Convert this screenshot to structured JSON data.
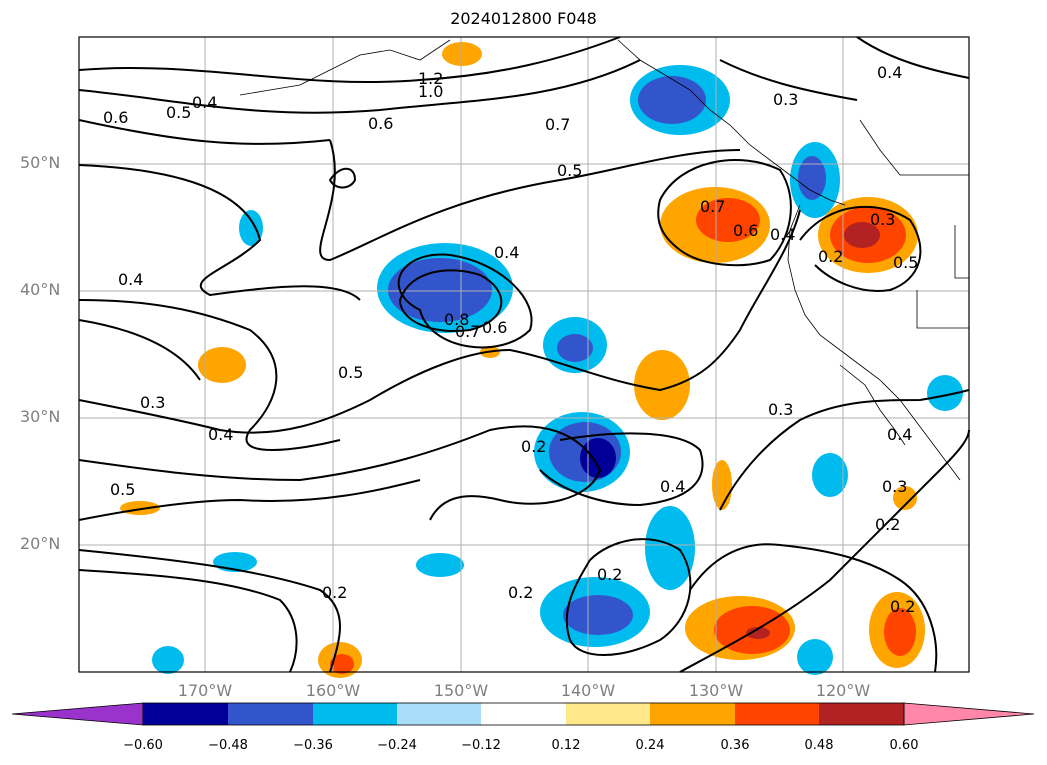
{
  "title": "2024012800 F048",
  "lat_labels": [
    "50°N",
    "40°N",
    "30°N",
    "20°N"
  ],
  "lon_labels": [
    "170°W",
    "160°W",
    "150°W",
    "140°W",
    "130°W",
    "120°W"
  ],
  "colorbar": {
    "ticks": [
      "−0.60",
      "−0.48",
      "−0.36",
      "−0.24",
      "−0.12",
      "0.12",
      "0.24",
      "0.36",
      "0.48",
      "0.60"
    ],
    "colors": [
      "#9933cc",
      "#000099",
      "#3355cc",
      "#00bbee",
      "#aaddf7",
      "#ffffff",
      "#ffe88a",
      "#ffa500",
      "#ff4400",
      "#b22222",
      "#ff88aa"
    ]
  },
  "contour_labels": [
    "1.2",
    "1.0",
    "0.6",
    "0.4",
    "0.5",
    "0.6",
    "0.7",
    "0.3",
    "0.4",
    "0.5",
    "0.4",
    "0.7",
    "0.6",
    "0.4",
    "0.3",
    "0.2",
    "0.5",
    "0.8",
    "0.7",
    "0.6",
    "0.5",
    "0.4",
    "0.3",
    "0.4",
    "0.5",
    "0.2",
    "0.4",
    "0.3",
    "0.4",
    "0.3",
    "0.2",
    "0.2",
    "0.2",
    "0.2",
    "0.2"
  ]
}
